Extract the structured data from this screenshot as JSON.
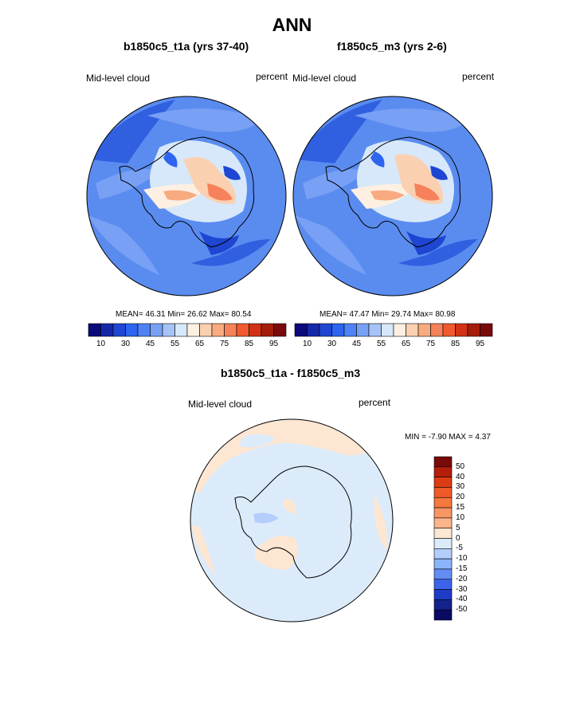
{
  "figure": {
    "title": "ANN",
    "panels": [
      {
        "case": "b1850c5_t1a (yrs 37-40)",
        "field_label": "Mid-level cloud",
        "units": "percent",
        "stats": "MEAN=  46.31  Min=  26.62  Max=  80.54"
      },
      {
        "case": "f1850c5_m3 (yrs 2-6)",
        "field_label": "Mid-level cloud",
        "units": "percent",
        "stats": "MEAN=  47.47  Min=  29.74  Max=  80.98"
      }
    ],
    "diff_panel": {
      "title": "b1850c5_t1a - f1850c5_m3",
      "field_label": "Mid-level cloud",
      "units": "percent",
      "stats": "MIN =  -7.90 MAX =   4.37"
    },
    "colorbar": {
      "tick_labels": [
        "10",
        "30",
        "45",
        "55",
        "65",
        "75",
        "85",
        "95"
      ],
      "colors": [
        "#0a0a7a",
        "#1428a8",
        "#1e46d2",
        "#2d64f0",
        "#4f82f5",
        "#78a0f5",
        "#a5c3f5",
        "#d7e8fa",
        "#fdf0e2",
        "#fbd0b0",
        "#f8aa80",
        "#f5825a",
        "#f05a2e",
        "#d23214",
        "#a51e0a",
        "#7a0a0a"
      ]
    },
    "diff_colorbar": {
      "tick_labels": [
        "50",
        "40",
        "30",
        "20",
        "15",
        "10",
        "5",
        "0",
        "-5",
        "-10",
        "-15",
        "-20",
        "-30",
        "-40",
        "-50"
      ],
      "colors": [
        "#7a0a0a",
        "#b41e0a",
        "#dc3c14",
        "#f05a28",
        "#f5783c",
        "#f89664",
        "#fbb48c",
        "#fde6d2",
        "#dcebfa",
        "#b4cdfa",
        "#8cb4fa",
        "#648cf5",
        "#3c64eb",
        "#1e3cc8",
        "#14238c",
        "#0a0a64"
      ]
    }
  }
}
